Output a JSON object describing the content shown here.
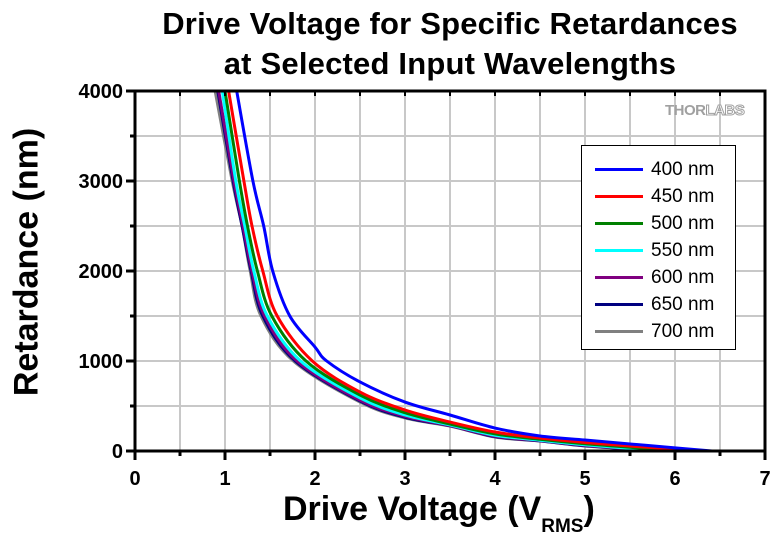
{
  "chart_data": {
    "type": "line",
    "title": [
      "Drive Voltage for Specific Retardances",
      "at Selected Input Wavelengths"
    ],
    "xlabel": "Drive Voltage (V",
    "xlabel_sub": "RMS",
    "xlabel_close": ")",
    "ylabel": "Retardance (nm)",
    "xlim": [
      0,
      7
    ],
    "ylim": [
      0,
      4000
    ],
    "x_ticks": [
      "0",
      "1",
      "2",
      "3",
      "4",
      "5",
      "6",
      "7"
    ],
    "y_ticks": [
      "0",
      "1000",
      "2000",
      "3000",
      "4000"
    ],
    "x_tick_values": [
      0,
      1,
      2,
      3,
      4,
      5,
      6,
      7
    ],
    "y_tick_values": [
      0,
      1000,
      2000,
      3000,
      4000
    ],
    "grid": true,
    "grid_x_step": 0.5,
    "grid_y_step": 500,
    "legend_position": "top-right",
    "watermark": "THORLABS",
    "series": [
      {
        "name": "400 nm",
        "color": "#0000ff",
        "points": [
          [
            1.13,
            4000
          ],
          [
            1.31,
            3000
          ],
          [
            1.43,
            2500
          ],
          [
            1.53,
            2000
          ],
          [
            1.72,
            1500
          ],
          [
            2.0,
            1155
          ],
          [
            2.13,
            1000
          ],
          [
            2.5,
            767
          ],
          [
            3,
            544
          ],
          [
            3.5,
            400
          ],
          [
            4,
            255
          ],
          [
            4.5,
            167
          ],
          [
            5,
            122
          ],
          [
            5.5,
            78
          ],
          [
            6,
            35
          ],
          [
            6.41,
            0
          ]
        ]
      },
      {
        "name": "450 nm",
        "color": "#ff0000",
        "points": [
          [
            1.04,
            4000
          ],
          [
            1.21,
            3000
          ],
          [
            1.3,
            2500
          ],
          [
            1.42,
            2000
          ],
          [
            1.58,
            1500
          ],
          [
            1.97,
            1000
          ],
          [
            2.5,
            655
          ],
          [
            3,
            455
          ],
          [
            3.5,
            322
          ],
          [
            4,
            211
          ],
          [
            4.5,
            144
          ],
          [
            5,
            95
          ],
          [
            5.5,
            55
          ],
          [
            6,
            20
          ],
          [
            6.19,
            0
          ]
        ]
      },
      {
        "name": "500 nm",
        "color": "#008000",
        "points": [
          [
            1.0,
            4000
          ],
          [
            1.16,
            3000
          ],
          [
            1.25,
            2500
          ],
          [
            1.36,
            2000
          ],
          [
            1.52,
            1500
          ],
          [
            1.9,
            1000
          ],
          [
            2.5,
            622
          ],
          [
            3,
            425
          ],
          [
            3.5,
            300
          ],
          [
            4,
            190
          ],
          [
            4.5,
            130
          ],
          [
            5,
            80
          ],
          [
            5.5,
            42
          ],
          [
            6.0,
            0
          ]
        ]
      },
      {
        "name": "550 nm",
        "color": "#00ffff",
        "points": [
          [
            0.97,
            4000
          ],
          [
            1.12,
            3000
          ],
          [
            1.22,
            2500
          ],
          [
            1.32,
            2000
          ],
          [
            1.47,
            1500
          ],
          [
            1.84,
            1000
          ],
          [
            2.5,
            590
          ],
          [
            3,
            400
          ],
          [
            3.5,
            290
          ],
          [
            4,
            175
          ],
          [
            4.5,
            120
          ],
          [
            5,
            70
          ],
          [
            5.5,
            30
          ],
          [
            5.87,
            0
          ]
        ]
      },
      {
        "name": "600 nm",
        "color": "#800080",
        "points": [
          [
            0.93,
            4000
          ],
          [
            1.1,
            3000
          ],
          [
            1.2,
            2500
          ],
          [
            1.3,
            2000
          ],
          [
            1.44,
            1500
          ],
          [
            1.8,
            1000
          ],
          [
            2.5,
            565
          ],
          [
            3,
            385
          ],
          [
            3.5,
            282
          ],
          [
            4,
            165
          ],
          [
            4.5,
            115
          ],
          [
            5,
            62
          ],
          [
            5.5,
            25
          ],
          [
            5.78,
            0
          ]
        ]
      },
      {
        "name": "650 nm",
        "color": "#000080",
        "points": [
          [
            0.92,
            4000
          ],
          [
            1.09,
            3000
          ],
          [
            1.19,
            2500
          ],
          [
            1.29,
            2000
          ],
          [
            1.42,
            1500
          ],
          [
            1.78,
            1000
          ],
          [
            2.5,
            555
          ],
          [
            3,
            375
          ],
          [
            3.5,
            280
          ],
          [
            4,
            160
          ],
          [
            4.5,
            112
          ],
          [
            5,
            58
          ],
          [
            5.5,
            23
          ],
          [
            5.75,
            0
          ]
        ]
      },
      {
        "name": "700 nm",
        "color": "#808080",
        "points": [
          [
            0.89,
            4000
          ],
          [
            1.08,
            3000
          ],
          [
            1.19,
            2500
          ],
          [
            1.28,
            2000
          ],
          [
            1.4,
            1500
          ],
          [
            1.76,
            1000
          ],
          [
            2.5,
            544
          ],
          [
            3,
            367
          ],
          [
            3.5,
            277
          ],
          [
            4,
            155
          ],
          [
            4.5,
            111
          ],
          [
            5,
            55
          ],
          [
            5.5,
            22
          ],
          [
            5.72,
            0
          ]
        ]
      }
    ]
  },
  "logo": {
    "part1": "THOR",
    "part2": "LABS"
  }
}
